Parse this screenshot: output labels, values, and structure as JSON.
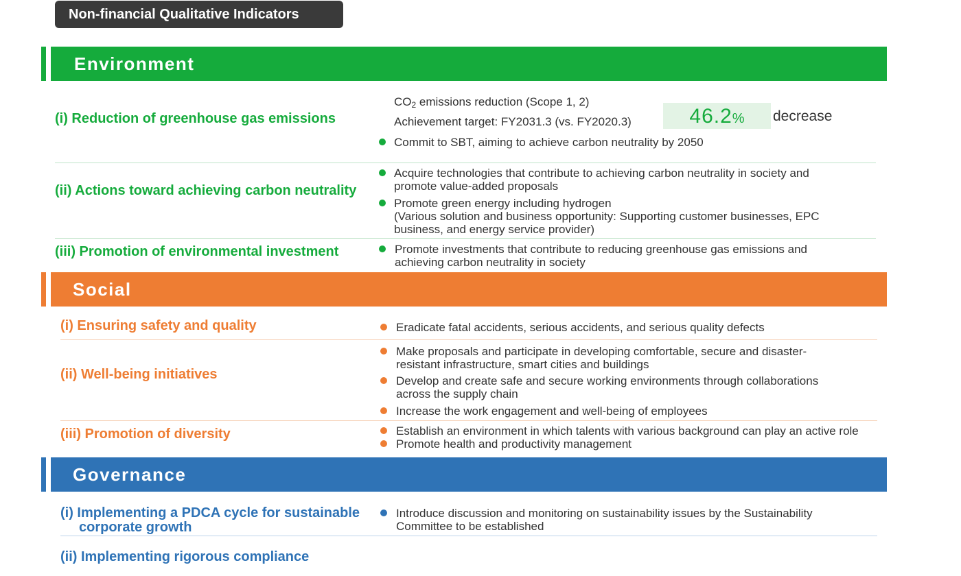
{
  "badge": "Non-financial Qualitative Indicators",
  "environment": {
    "title": "Environment",
    "i": {
      "heading": "(i) Reduction of greenhouse gas emissions",
      "co2_prefix": "CO",
      "co2_sub": "2",
      "co2_suffix": " emissions reduction (Scope 1, 2)",
      "target": "Achievement target: FY2031.3 (vs. FY2020.3)",
      "kpi_value": "46.2",
      "kpi_unit": "%",
      "kpi_label": "decrease",
      "bullet": "Commit to SBT, aiming to achieve carbon neutrality by 2050"
    },
    "ii": {
      "heading": "(ii) Actions toward achieving carbon neutrality",
      "b1_l1": "Acquire technologies that contribute to achieving carbon neutrality in society and",
      "b1_l2": "promote value-added proposals",
      "b2_l1": "Promote green energy including hydrogen",
      "b2_l2": "(Various solution and business opportunity: Supporting customer businesses, EPC",
      "b2_l3": "business, and energy service provider)"
    },
    "iii": {
      "heading": "(iii) Promotion of environmental investment",
      "b1_l1": "Promote investments that contribute to reducing greenhouse gas emissions and",
      "b1_l2": "achieving carbon neutrality in society"
    }
  },
  "social": {
    "title": "Social",
    "i": {
      "heading": "(i) Ensuring safety and quality",
      "b1": "Eradicate fatal accidents, serious accidents, and serious quality defects"
    },
    "ii": {
      "heading": "(ii) Well-being initiatives",
      "b1_l1": "Make proposals and participate in developing comfortable, secure and disaster-",
      "b1_l2": "resistant infrastructure, smart cities and buildings",
      "b2_l1": "Develop and create safe and secure working environments through collaborations",
      "b2_l2": "across the supply chain",
      "b3": "Increase the work engagement and well-being of employees"
    },
    "iii": {
      "heading": "(iii) Promotion of diversity",
      "b1": "Establish an environment in which talents with various background can play an active role",
      "b2": "Promote health and productivity management"
    }
  },
  "governance": {
    "title": "Governance",
    "i": {
      "heading_l1": "(i) Implementing a PDCA cycle for sustainable",
      "heading_l2": "corporate growth",
      "b1_l1": "Introduce discussion and monitoring on sustainability issues by the Sustainability",
      "b1_l2": "Committee to be established"
    },
    "ii": {
      "heading": "(ii) Implementing rigorous compliance"
    }
  }
}
